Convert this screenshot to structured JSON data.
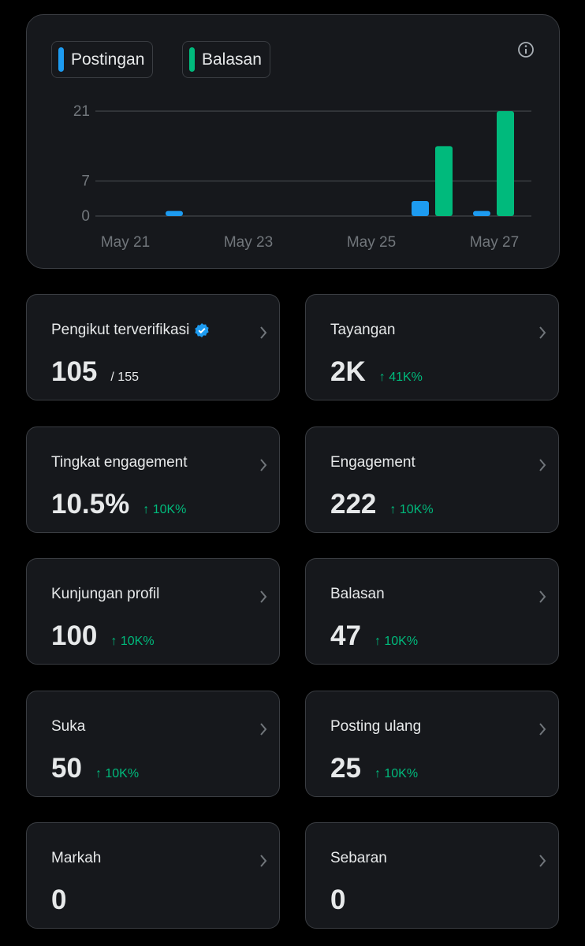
{
  "chart_data": {
    "type": "bar",
    "categories": [
      "May 21",
      null,
      "May 23",
      null,
      "May 25",
      null,
      "May 27"
    ],
    "series": [
      {
        "name": "Postingan",
        "color": "#1d9bf0",
        "values": [
          0,
          1,
          0,
          0,
          0,
          3,
          1
        ]
      },
      {
        "name": "Balasan",
        "color": "#00ba7c",
        "values": [
          0,
          0,
          0,
          0,
          0,
          14,
          21
        ]
      }
    ],
    "ylim": [
      0,
      21
    ],
    "yticks": [
      0,
      7,
      21
    ],
    "grid": true
  },
  "cards": [
    {
      "label": "Pengikut terverifikasi",
      "value": "105",
      "total": "/ 155",
      "verified": true
    },
    {
      "label": "Tayangan",
      "value": "2K",
      "change": "↑ 41K%"
    },
    {
      "label": "Tingkat engagement",
      "value": "10.5%",
      "change": "↑ 10K%"
    },
    {
      "label": "Engagement",
      "value": "222",
      "change": "↑ 10K%"
    },
    {
      "label": "Kunjungan profil",
      "value": "100",
      "change": "↑ 10K%"
    },
    {
      "label": "Balasan",
      "value": "47",
      "change": "↑ 10K%"
    },
    {
      "label": "Suka",
      "value": "50",
      "change": "↑ 10K%"
    },
    {
      "label": "Posting ulang",
      "value": "25",
      "change": "↑ 10K%"
    },
    {
      "label": "Markah",
      "value": "0"
    },
    {
      "label": "Sebaran",
      "value": "0"
    }
  ]
}
